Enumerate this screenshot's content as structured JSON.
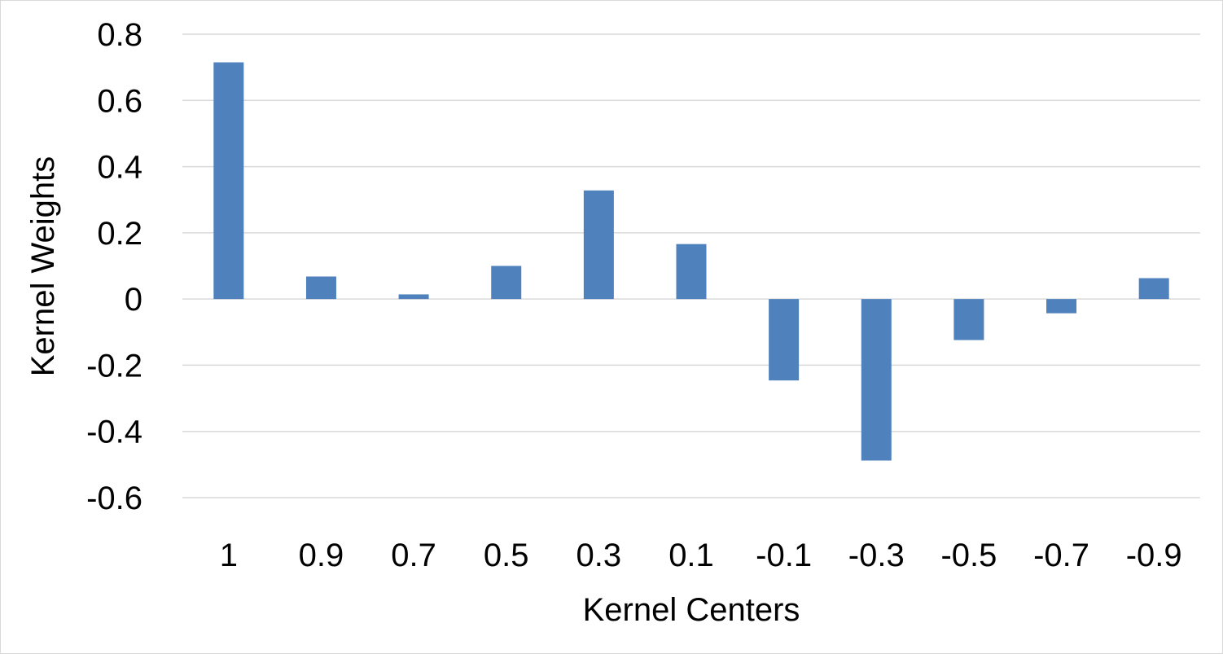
{
  "chart_data": {
    "type": "bar",
    "title": "",
    "xlabel": "Kernel Centers",
    "ylabel": "Kernel Weights",
    "categories": [
      "1",
      "0.9",
      "0.7",
      "0.5",
      "0.3",
      "0.1",
      "-0.1",
      "-0.3",
      "-0.5",
      "-0.7",
      "-0.9"
    ],
    "series": [
      {
        "values": [
          0.715,
          0.068,
          0.014,
          0.1,
          0.328,
          0.166,
          -0.246,
          -0.488,
          -0.124,
          -0.043,
          0.063
        ]
      }
    ],
    "ylim": [
      -0.6,
      0.8
    ],
    "yticks": [
      "0.8",
      "0.6",
      "0.4",
      "0.2",
      "0",
      "-0.2",
      "-0.4",
      "-0.6"
    ],
    "ytick_values": [
      0.8,
      0.6,
      0.4,
      0.2,
      0,
      -0.2,
      -0.4,
      -0.6
    ],
    "grid": true,
    "bar_color": "#4f81bd",
    "grid_color": "#d9d9d9"
  }
}
